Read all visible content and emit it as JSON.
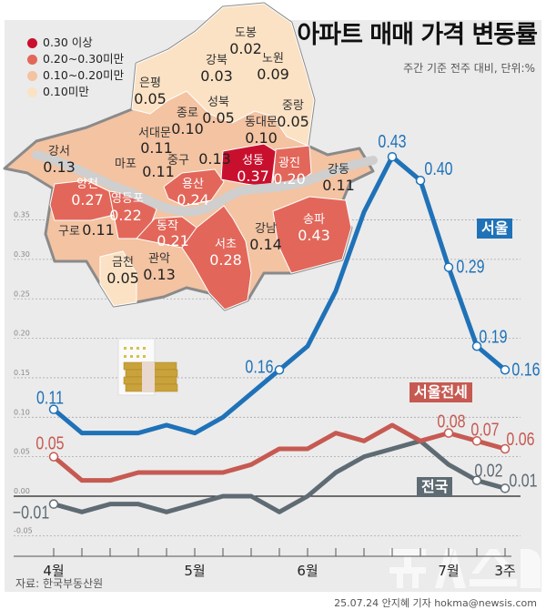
{
  "title": "아파트 매매 가격 변동률",
  "subtitle": "주간 기준 전주 대비, 단위:%",
  "legend": [
    {
      "label": "0.30 이상",
      "color": "#c8102e"
    },
    {
      "label": "0.20~0.30미만",
      "color": "#e2675a"
    },
    {
      "label": "0.10~0.20미만",
      "color": "#f3c3a2"
    },
    {
      "label": "0.10미만",
      "color": "#fbe2c4"
    }
  ],
  "map": {
    "districts": [
      {
        "name": "도봉",
        "value": "0.02"
      },
      {
        "name": "노원",
        "value": "0.09"
      },
      {
        "name": "강북",
        "value": "0.03"
      },
      {
        "name": "은평",
        "value": "0.05"
      },
      {
        "name": "종로",
        "value": "0.10"
      },
      {
        "name": "성북",
        "value": "0.05"
      },
      {
        "name": "중랑",
        "value": "0.05"
      },
      {
        "name": "동대문",
        "value": "0.10"
      },
      {
        "name": "서대문",
        "value": "0.11"
      },
      {
        "name": "마포",
        "value": "0.11"
      },
      {
        "name": "중구",
        "value": "0.13"
      },
      {
        "name": "성동",
        "value": "0.37"
      },
      {
        "name": "광진",
        "value": "0.20"
      },
      {
        "name": "강동",
        "value": "0.11"
      },
      {
        "name": "강서",
        "value": "0.13"
      },
      {
        "name": "양천",
        "value": "0.27"
      },
      {
        "name": "영등포",
        "value": "0.22"
      },
      {
        "name": "용산",
        "value": "0.24"
      },
      {
        "name": "동작",
        "value": "0.21"
      },
      {
        "name": "구로",
        "value": "0.11"
      },
      {
        "name": "금천",
        "value": "0.05"
      },
      {
        "name": "관악",
        "value": "0.13"
      },
      {
        "name": "서초",
        "value": "0.28"
      },
      {
        "name": "강남",
        "value": "0.14"
      },
      {
        "name": "송파",
        "value": "0.43"
      }
    ]
  },
  "chart_data": {
    "type": "line",
    "ylim": [
      -0.05,
      0.35
    ],
    "yticks": [
      "0.35",
      "0.30",
      "0.25",
      "0.20",
      "0.15",
      "0.10",
      "0.05",
      "0.00",
      "-0.05"
    ],
    "grid": true,
    "x_labels": [
      {
        "index": 0,
        "label": "4월"
      },
      {
        "index": 5,
        "label": "5월"
      },
      {
        "index": 9,
        "label": "6월"
      },
      {
        "index": 14,
        "label": "7월"
      },
      {
        "index": 16,
        "label": "3주"
      }
    ],
    "series": [
      {
        "name": "서울",
        "color": "#1f72b8",
        "values": [
          0.11,
          0.08,
          0.08,
          0.08,
          0.09,
          0.08,
          0.1,
          0.13,
          0.16,
          0.19,
          0.26,
          0.36,
          0.43,
          0.4,
          0.29,
          0.19,
          0.16
        ],
        "labeled": [
          0,
          8,
          12,
          13,
          14,
          15,
          16
        ]
      },
      {
        "name": "서울전세",
        "color": "#c65a52",
        "values": [
          0.05,
          0.02,
          0.02,
          0.03,
          0.03,
          0.03,
          0.03,
          0.04,
          0.06,
          0.06,
          0.08,
          0.07,
          0.09,
          0.07,
          0.08,
          0.07,
          0.06
        ],
        "labeled": [
          0,
          14,
          15,
          16
        ]
      },
      {
        "name": "전국",
        "color": "#5f6b73",
        "values": [
          -0.01,
          -0.02,
          -0.01,
          -0.01,
          -0.02,
          -0.01,
          0.0,
          0.0,
          -0.02,
          0.0,
          0.03,
          0.05,
          0.06,
          0.07,
          0.04,
          0.02,
          0.01
        ],
        "labeled": [
          0,
          15,
          16
        ]
      }
    ]
  },
  "source": "자료: 한국부동산원",
  "credit": "25.07.24 안지혜 기자 hokma@newsis.com",
  "logo_text": "뉴시스"
}
